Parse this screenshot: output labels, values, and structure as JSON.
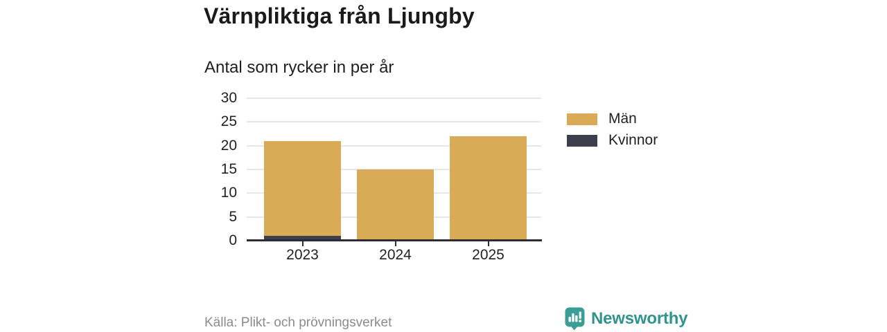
{
  "header": {
    "title": "Värnpliktiga från Ljungby",
    "subtitle": "Antal som rycker in per år"
  },
  "chart_data": {
    "type": "bar",
    "stacked": true,
    "title": "Värnpliktiga från Ljungby",
    "subtitle": "Antal som rycker in per år",
    "categories": [
      "2023",
      "2024",
      "2025"
    ],
    "series": [
      {
        "name": "Män",
        "color": "#d9ab56",
        "values": [
          20,
          15,
          22
        ]
      },
      {
        "name": "Kvinnor",
        "color": "#3e3e4d",
        "values": [
          1,
          0,
          0
        ]
      }
    ],
    "totals": [
      21,
      15,
      22
    ],
    "xlabel": "",
    "ylabel": "",
    "ylim": [
      0,
      30
    ],
    "yticks": [
      0,
      5,
      10,
      15,
      20,
      25,
      30
    ],
    "grid": true,
    "legend_position": "right",
    "colors": {
      "grid": "#e7e7e7",
      "axis": "#2c2c37",
      "man": "#d9ab56",
      "kvinnor": "#3e3e4d"
    }
  },
  "footer": {
    "source": "Källa: Plikt- och prövningsverket",
    "brand": "Newsworthy",
    "brand_color": "#2f948d",
    "logo_icon": "newsworthy-bubble-chart-icon"
  }
}
